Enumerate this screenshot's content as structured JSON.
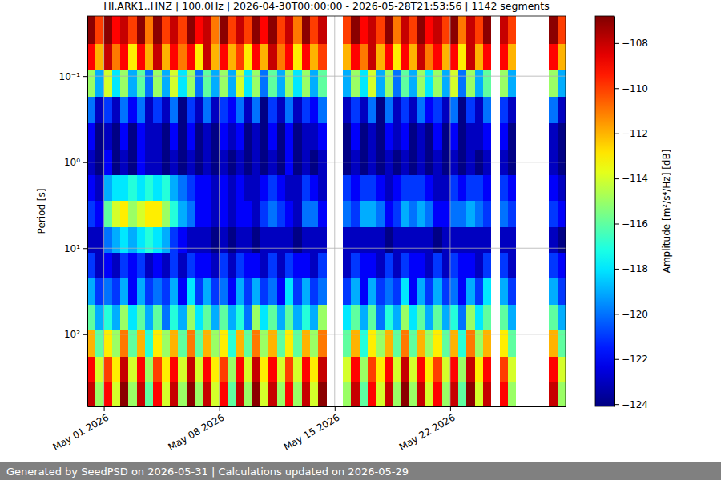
{
  "chart_data": {
    "type": "heatmap",
    "title": "HI.ARK1..HNZ | 100.0Hz | 2026-04-30T00:00:00 - 2026-05-28T21:53:56 | 1142 segments",
    "y_label": "Period [s]",
    "annotations": [
      "Generated by SeedPSD on 2026-05-31 | Calculations updated on 2026-05-29"
    ],
    "log": "y",
    "grid": true,
    "xlim": [
      "2026-04-30T00:00",
      "2026-05-29T00:00"
    ],
    "ylim": [
      0.02,
      690
    ],
    "xticks": [
      {
        "value": "2026-05-01T00:00",
        "label": "May 01 2026"
      },
      {
        "value": "2026-05-08T00:00",
        "label": "May 08 2026"
      },
      {
        "value": "2026-05-15T00:00",
        "label": "May 15 2026"
      },
      {
        "value": "2026-05-22T00:00",
        "label": "May 22 2026"
      }
    ],
    "yticks": [
      {
        "value": 0.1,
        "label": "10⁻¹"
      },
      {
        "value": 1,
        "label": "10⁰"
      },
      {
        "value": 10,
        "label": "10¹"
      },
      {
        "value": 100,
        "label": "10²"
      }
    ],
    "x": [
      "2026-04-30T00:00",
      "2026-04-30T12:00",
      "2026-05-01T00:00",
      "2026-05-01T12:00",
      "2026-05-02T00:00",
      "2026-05-02T12:00",
      "2026-05-03T00:00",
      "2026-05-03T12:00",
      "2026-05-04T00:00",
      "2026-05-04T12:00",
      "2026-05-05T00:00",
      "2026-05-05T12:00",
      "2026-05-06T00:00",
      "2026-05-06T12:00",
      "2026-05-07T00:00",
      "2026-05-07T12:00",
      "2026-05-08T00:00",
      "2026-05-08T12:00",
      "2026-05-09T00:00",
      "2026-05-09T12:00",
      "2026-05-10T00:00",
      "2026-05-10T12:00",
      "2026-05-11T00:00",
      "2026-05-11T12:00",
      "2026-05-12T00:00",
      "2026-05-12T12:00",
      "2026-05-13T00:00",
      "2026-05-13T12:00",
      "2026-05-14T00:00",
      "2026-05-14T12:00",
      "2026-05-15T00:00",
      "2026-05-15T12:00",
      "2026-05-16T00:00",
      "2026-05-16T12:00",
      "2026-05-17T00:00",
      "2026-05-17T12:00",
      "2026-05-18T00:00",
      "2026-05-18T12:00",
      "2026-05-19T00:00",
      "2026-05-19T12:00",
      "2026-05-20T00:00",
      "2026-05-20T12:00",
      "2026-05-21T00:00",
      "2026-05-21T12:00",
      "2026-05-22T00:00",
      "2026-05-22T12:00",
      "2026-05-23T00:00",
      "2026-05-23T12:00",
      "2026-05-24T00:00",
      "2026-05-24T12:00",
      "2026-05-25T00:00",
      "2026-05-25T12:00",
      "2026-05-26T00:00",
      "2026-05-26T12:00",
      "2026-05-27T00:00",
      "2026-05-27T12:00",
      "2026-05-28T00:00",
      "2026-05-28T12:00"
    ],
    "y": [
      0.03,
      0.06,
      0.12,
      0.25,
      0.5,
      1,
      2,
      4,
      8,
      16,
      32,
      64,
      128,
      256,
      512
    ],
    "z": [
      [
        -107,
        -110,
        -107,
        -109,
        -108,
        -110,
        -107,
        -111,
        -107,
        -110,
        -108,
        -110,
        -107,
        -109,
        -108,
        -111,
        -107,
        -110,
        -108,
        -110,
        -107,
        -109,
        -107,
        -110,
        -108,
        -111,
        -107,
        -110,
        -108,
        null,
        null,
        -110,
        -107,
        -109,
        -108,
        -110,
        -107,
        -111,
        -108,
        -110,
        -107,
        -109,
        -108,
        -110,
        -107,
        -111,
        -108,
        -110,
        -107,
        null,
        -108,
        -110,
        null,
        null,
        null,
        null,
        -107,
        -110
      ],
      [
        -109,
        -112,
        -108,
        -111,
        -109,
        -113,
        -109,
        -112,
        -108,
        -112,
        -109,
        -111,
        -109,
        -113,
        -108,
        -112,
        -109,
        -112,
        -110,
        -113,
        -109,
        -112,
        -108,
        -111,
        -109,
        -113,
        -109,
        -112,
        -110,
        null,
        null,
        -112,
        -109,
        -111,
        -108,
        -112,
        -109,
        -113,
        -109,
        -112,
        -108,
        -111,
        -109,
        -112,
        -109,
        -113,
        -108,
        -112,
        -109,
        null,
        -109,
        -112,
        null,
        null,
        null,
        null,
        -109,
        -112
      ],
      [
        -115,
        -119,
        -114,
        -118,
        -115,
        -119,
        -116,
        -120,
        -115,
        -119,
        -114,
        -118,
        -115,
        -120,
        -116,
        -119,
        -115,
        -119,
        -114,
        -118,
        -115,
        -120,
        -116,
        -119,
        -115,
        -118,
        -115,
        -119,
        -116,
        null,
        null,
        -119,
        -115,
        -118,
        -114,
        -119,
        -115,
        -120,
        -116,
        -119,
        -115,
        -118,
        -115,
        -119,
        -114,
        -120,
        -115,
        -119,
        -116,
        null,
        -115,
        -119,
        null,
        null,
        null,
        null,
        -115,
        -119
      ],
      [
        -120,
        -123,
        -121,
        -123,
        -120,
        -122,
        -120,
        -123,
        -121,
        -123,
        -120,
        -124,
        -121,
        -123,
        -120,
        -123,
        -121,
        -122,
        -120,
        -123,
        -120,
        -124,
        -121,
        -123,
        -120,
        -123,
        -121,
        -122,
        -120,
        null,
        null,
        -123,
        -121,
        -123,
        -120,
        -124,
        -120,
        -123,
        -121,
        -123,
        -120,
        -122,
        -121,
        -123,
        -120,
        -124,
        -121,
        -123,
        -120,
        null,
        -121,
        -123,
        null,
        null,
        null,
        null,
        -120,
        -123
      ],
      [
        -122,
        -124,
        -123,
        -124,
        -122,
        -124,
        -122,
        -123,
        -123,
        -124,
        -122,
        -124,
        -122,
        -124,
        -123,
        -124,
        -122,
        -123,
        -122,
        -124,
        -123,
        -124,
        -122,
        -124,
        -122,
        -124,
        -123,
        -123,
        -122,
        null,
        null,
        -124,
        -122,
        -124,
        -123,
        -124,
        -122,
        -123,
        -122,
        -124,
        -123,
        -124,
        -122,
        -124,
        -122,
        -124,
        -123,
        -123,
        -122,
        null,
        -122,
        -124,
        null,
        null,
        null,
        null,
        -123,
        -124
      ],
      [
        -123,
        -124,
        -122,
        -124,
        -123,
        -124,
        -122,
        -123,
        -123,
        -124,
        -123,
        -124,
        -123,
        -124,
        -123,
        -124,
        -123,
        -124,
        -123,
        -124,
        -123,
        -124,
        -123,
        -124,
        -122,
        -124,
        -123,
        -124,
        -123,
        null,
        null,
        -124,
        -123,
        -124,
        -123,
        -124,
        -123,
        -124,
        -123,
        -124,
        -123,
        -124,
        -123,
        -124,
        -123,
        -124,
        -123,
        -124,
        -123,
        null,
        -123,
        -124,
        null,
        null,
        null,
        null,
        -123,
        -124
      ],
      [
        -122,
        -123,
        -119,
        -118,
        -118,
        -117,
        -118,
        -117,
        -118,
        -117,
        -119,
        -120,
        -121,
        -122,
        -122,
        -123,
        -122,
        -123,
        -122,
        -123,
        -123,
        -122,
        -121,
        -122,
        -123,
        -123,
        -121,
        -122,
        -123,
        null,
        null,
        -121,
        -122,
        -121,
        -121,
        -122,
        -123,
        -122,
        -121,
        -121,
        -121,
        -122,
        -123,
        -123,
        -121,
        -122,
        -121,
        -121,
        -122,
        null,
        -121,
        -122,
        null,
        null,
        null,
        null,
        -122,
        -123
      ],
      [
        -121,
        -122,
        -116,
        -114,
        -113,
        -115,
        -114,
        -113,
        -113,
        -115,
        -117,
        -119,
        -120,
        -122,
        -122,
        -123,
        -122,
        -123,
        -122,
        -122,
        -123,
        -121,
        -120,
        -121,
        -122,
        -123,
        -120,
        -120,
        -122,
        null,
        null,
        -120,
        -121,
        -119,
        -119,
        -120,
        -122,
        -121,
        -119,
        -120,
        -119,
        -120,
        -122,
        -122,
        -120,
        -120,
        -119,
        -120,
        -121,
        null,
        -120,
        -121,
        null,
        null,
        null,
        null,
        -121,
        -122
      ],
      [
        -123,
        -123,
        -120,
        -119,
        -118,
        -119,
        -118,
        -117,
        -118,
        -119,
        -121,
        -122,
        -123,
        -123,
        -123,
        -124,
        -123,
        -124,
        -123,
        -123,
        -124,
        -123,
        -123,
        -123,
        -123,
        -124,
        -123,
        -123,
        -123,
        null,
        null,
        -123,
        -123,
        -123,
        -123,
        -123,
        -124,
        -123,
        -123,
        -123,
        -123,
        -123,
        -124,
        -123,
        -123,
        -123,
        -123,
        -123,
        -123,
        null,
        -123,
        -123,
        null,
        null,
        null,
        null,
        -123,
        -124
      ],
      [
        -121,
        -123,
        -122,
        -123,
        -121,
        -122,
        -121,
        -123,
        -122,
        -123,
        -121,
        -123,
        -121,
        -122,
        -122,
        -123,
        -121,
        -123,
        -121,
        -122,
        -122,
        -123,
        -121,
        -123,
        -121,
        -122,
        -122,
        -123,
        -121,
        null,
        null,
        -123,
        -121,
        -122,
        -122,
        -123,
        -121,
        -123,
        -121,
        -122,
        -122,
        -123,
        -121,
        -123,
        -121,
        -122,
        -122,
        -123,
        -121,
        null,
        -121,
        -123,
        null,
        null,
        null,
        null,
        -121,
        -122
      ],
      [
        -119,
        -121,
        -120,
        -121,
        -119,
        -122,
        -119,
        -121,
        -120,
        -121,
        -119,
        -122,
        -118,
        -121,
        -119,
        -121,
        -120,
        -122,
        -119,
        -121,
        -119,
        -121,
        -120,
        -122,
        -118,
        -121,
        -119,
        -121,
        -120,
        null,
        null,
        -121,
        -119,
        -122,
        -119,
        -121,
        -120,
        -121,
        -118,
        -122,
        -119,
        -121,
        -119,
        -121,
        -120,
        -122,
        -119,
        -121,
        -118,
        null,
        -119,
        -121,
        null,
        null,
        null,
        null,
        -119,
        -121
      ],
      [
        -116,
        -119,
        -117,
        -119,
        -115,
        -118,
        -116,
        -119,
        -116,
        -120,
        -117,
        -119,
        -115,
        -118,
        -116,
        -119,
        -116,
        -119,
        -117,
        -120,
        -115,
        -118,
        -116,
        -119,
        -116,
        -119,
        -117,
        -119,
        -115,
        null,
        null,
        -118,
        -116,
        -119,
        -116,
        -120,
        -117,
        -119,
        -115,
        -118,
        -116,
        -119,
        -116,
        -119,
        -117,
        -120,
        -115,
        -118,
        -116,
        null,
        -116,
        -119,
        null,
        null,
        null,
        null,
        -116,
        -119
      ],
      [
        -112,
        -116,
        -113,
        -115,
        -111,
        -116,
        -112,
        -117,
        -113,
        -115,
        -112,
        -116,
        -111,
        -116,
        -112,
        -115,
        -113,
        -117,
        -112,
        -116,
        -111,
        -115,
        -112,
        -116,
        -113,
        -116,
        -112,
        -115,
        -111,
        null,
        null,
        -116,
        -112,
        -117,
        -113,
        -115,
        -112,
        -116,
        -111,
        -116,
        -112,
        -115,
        -113,
        -116,
        -112,
        -117,
        -111,
        -115,
        -112,
        null,
        -113,
        -116,
        null,
        null,
        null,
        null,
        -112,
        -116
      ],
      [
        -109,
        -114,
        -110,
        -113,
        -108,
        -114,
        -109,
        -115,
        -110,
        -113,
        -109,
        -114,
        -108,
        -114,
        -109,
        -113,
        -110,
        -115,
        -109,
        -114,
        -108,
        -113,
        -109,
        -114,
        -110,
        -114,
        -109,
        -113,
        -108,
        null,
        null,
        -114,
        -109,
        -115,
        -110,
        -113,
        -109,
        -114,
        -108,
        -114,
        -109,
        -113,
        -110,
        -114,
        -109,
        -115,
        -108,
        -113,
        -109,
        null,
        -110,
        -114,
        null,
        null,
        null,
        null,
        -109,
        -114
      ],
      [
        -108,
        -115,
        -109,
        -114,
        -107,
        -115,
        -108,
        -116,
        -109,
        -114,
        -108,
        -115,
        -107,
        -115,
        -108,
        -114,
        -109,
        -116,
        -108,
        -115,
        -107,
        -114,
        -108,
        -115,
        -109,
        -115,
        -108,
        -114,
        -107,
        null,
        null,
        -115,
        -108,
        -116,
        -109,
        -114,
        -108,
        -115,
        -107,
        -115,
        -108,
        -114,
        -109,
        -115,
        -108,
        -116,
        -107,
        -114,
        -108,
        null,
        -109,
        -115,
        null,
        null,
        null,
        null,
        -108,
        -115
      ]
    ],
    "colorbar": {
      "label": "Amplitude [m²/s⁴/Hz] [dB]",
      "range": [
        -124.1,
        -106.8
      ],
      "ticks": [
        {
          "value": -124,
          "label": "−124"
        },
        {
          "value": -122,
          "label": "−122"
        },
        {
          "value": -120,
          "label": "−120"
        },
        {
          "value": -118,
          "label": "−118"
        },
        {
          "value": -116,
          "label": "−116"
        },
        {
          "value": -114,
          "label": "−114"
        },
        {
          "value": -112,
          "label": "−112"
        },
        {
          "value": -110,
          "label": "−110"
        },
        {
          "value": -108,
          "label": "−108"
        }
      ]
    }
  }
}
